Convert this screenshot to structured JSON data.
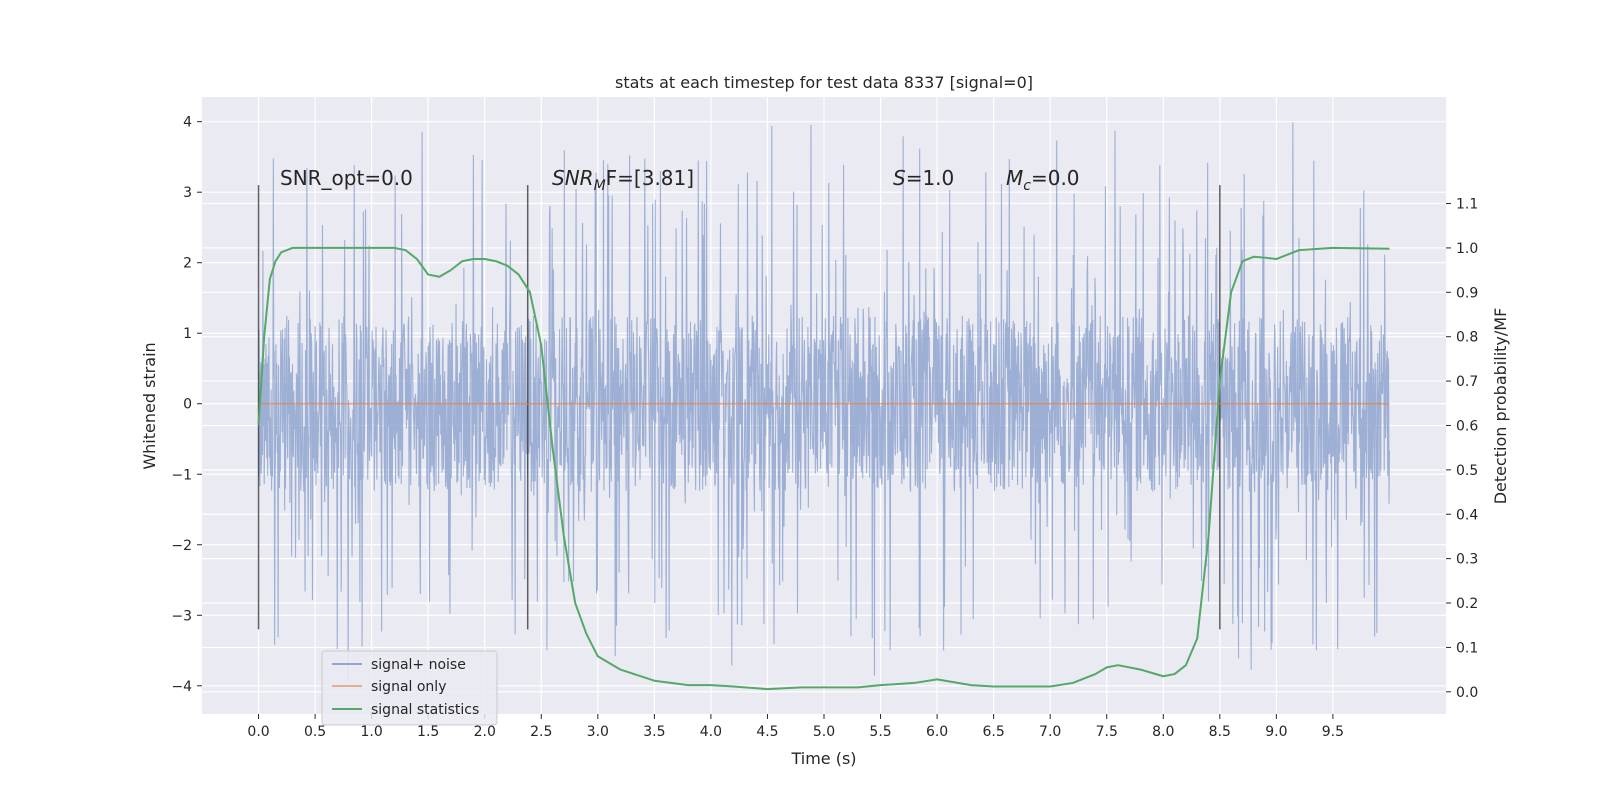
{
  "chart_data": {
    "type": "line",
    "title": "stats at each timestep for test data 8337 [signal=0]",
    "xlabel": "Time (s)",
    "ylabel": "Whitened strain",
    "ylabel_right": "Detection probability/MF",
    "xlim": [
      -0.5,
      10.5
    ],
    "ylim": [
      -4.4,
      4.35
    ],
    "ylim_right": [
      -0.05,
      1.34
    ],
    "x_ticks": [
      "0.0",
      "0.5",
      "1.0",
      "1.5",
      "2.0",
      "2.5",
      "3.0",
      "3.5",
      "4.0",
      "4.5",
      "5.0",
      "5.5",
      "6.0",
      "6.5",
      "7.0",
      "7.5",
      "8.0",
      "8.5",
      "9.0",
      "9.5"
    ],
    "y_ticks": [
      "4",
      "3",
      "2",
      "1",
      "0",
      "−1",
      "−2",
      "−3",
      "−4"
    ],
    "y_ticks_right": [
      "1.1",
      "1.0",
      "0.9",
      "0.8",
      "0.7",
      "0.6",
      "0.5",
      "0.4",
      "0.3",
      "0.2",
      "0.1",
      "0.0"
    ],
    "grid": true,
    "legend_placement": "lower-left",
    "annotations": {
      "snr_opt": "SNR_opt=0.0",
      "snr_mf_main": "SNR",
      "snr_mf_sub": "M",
      "snr_mf_rest": "F=[3.81]",
      "s_var": "S",
      "s_rest": "=1.0",
      "mc_var": "M",
      "mc_sub": "c",
      "mc_rest": "=0.0"
    },
    "vertical_markers_x": [
      0.0,
      2.38,
      8.5
    ],
    "vertical_marker_range": [
      -3.2,
      3.1
    ],
    "series": [
      {
        "name": "signal+ noise",
        "color": "#8fa5cf",
        "axis": "left",
        "description_sampling": "whitened noise trace from 0 to 10 s, dense band roughly ±1.3 with spikes to about ±4",
        "x_range": [
          0.0,
          10.0
        ],
        "core_amplitude": 1.25,
        "peak_amplitude": 4.0
      },
      {
        "name": "signal only",
        "color": "#dd8452",
        "axis": "left",
        "x": [
          0.0,
          10.0
        ],
        "y": [
          0.0,
          0.0
        ]
      },
      {
        "name": "signal statistics",
        "color": "#55a868",
        "axis": "right",
        "x": [
          0.0,
          0.05,
          0.1,
          0.15,
          0.2,
          0.3,
          0.5,
          0.8,
          1.0,
          1.2,
          1.3,
          1.4,
          1.5,
          1.6,
          1.7,
          1.8,
          1.9,
          2.0,
          2.1,
          2.2,
          2.3,
          2.4,
          2.5,
          2.6,
          2.7,
          2.8,
          2.9,
          3.0,
          3.2,
          3.5,
          3.8,
          4.0,
          4.2,
          4.5,
          4.8,
          5.0,
          5.3,
          5.5,
          5.8,
          6.0,
          6.3,
          6.5,
          7.0,
          7.2,
          7.4,
          7.5,
          7.6,
          7.8,
          8.0,
          8.1,
          8.2,
          8.3,
          8.4,
          8.5,
          8.6,
          8.7,
          8.8,
          8.9,
          9.0,
          9.1,
          9.2,
          9.5,
          10.0
        ],
        "y": [
          0.6,
          0.8,
          0.93,
          0.97,
          0.99,
          1.0,
          1.0,
          1.0,
          1.0,
          1.0,
          0.995,
          0.975,
          0.94,
          0.935,
          0.95,
          0.97,
          0.975,
          0.975,
          0.97,
          0.96,
          0.94,
          0.9,
          0.78,
          0.55,
          0.35,
          0.2,
          0.13,
          0.08,
          0.05,
          0.025,
          0.015,
          0.015,
          0.012,
          0.006,
          0.01,
          0.01,
          0.01,
          0.015,
          0.02,
          0.028,
          0.015,
          0.012,
          0.012,
          0.02,
          0.04,
          0.055,
          0.06,
          0.05,
          0.035,
          0.04,
          0.06,
          0.12,
          0.35,
          0.7,
          0.9,
          0.97,
          0.98,
          0.978,
          0.975,
          0.985,
          0.995,
          1.0,
          0.998
        ]
      }
    ],
    "legend": [
      "signal+ noise",
      "signal only",
      "signal statistics"
    ]
  }
}
